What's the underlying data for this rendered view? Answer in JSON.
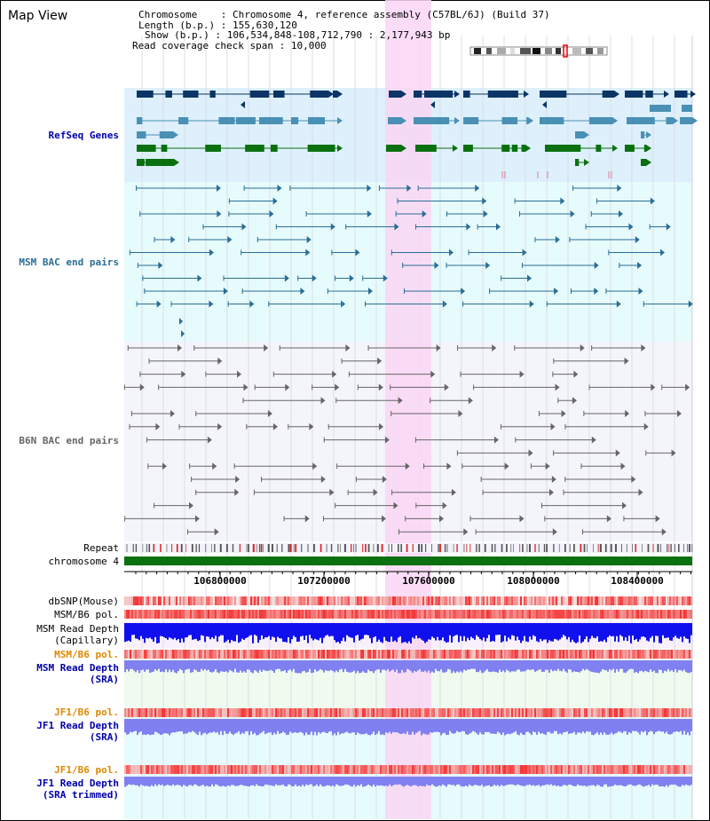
{
  "view": {
    "title": "Map View"
  },
  "info": {
    "chromosome_key": "Chromosome",
    "chromosome_value": "Chromosome 4, reference assembly (C57BL/6J) (Build 37)",
    "length_key": "Length (b.p.)",
    "length_value": "155,630,120",
    "show_key": "Show (b.p.)",
    "show_value": "106,534,848-108,712,790 : 2,177,943 bp",
    "coverage_key": "Read coverage check span",
    "coverage_value": "10,000"
  },
  "tracks": {
    "refseq": "RefSeq Genes",
    "msm_bac": "MSM BAC end pairs",
    "b6n_bac": "B6N BAC end pairs",
    "repeat": "Repeat",
    "chromosome": "chromosome 4",
    "dbsnp": "dbSNP(Mouse)",
    "msm_b6_pol": "MSM/B6 pol.",
    "msm_depth_cap_1": "MSM Read Depth",
    "msm_depth_cap_2": "(Capillary)",
    "msm_b6_pol_2": "MSM/B6 pol.",
    "msm_depth_sra_1": "MSM Read Depth",
    "msm_depth_sra_2": "(SRA)",
    "jf1_b6_pol": "JF1/B6 pol.",
    "jf1_depth_sra_1": "JF1 Read Depth",
    "jf1_depth_sra_2": "(SRA)",
    "jf1_b6_pol_2": "JF1/B6 pol.",
    "jf1_depth_trim_1": "JF1 Read Depth",
    "jf1_depth_trim_2": "(SRA trimmed)"
  },
  "axis": {
    "ticks": [
      "106800000",
      "107200000",
      "107600000",
      "108000000",
      "108400000"
    ]
  },
  "colors": {
    "refseq_bg": "#ddf0fb",
    "msm_bg": "#e6fbfb",
    "b6n_bg": "#f4f4fb",
    "highlight": "#f9d6f4",
    "refseq_dark": "#0b3566",
    "refseq_mid": "#4a90b4",
    "refseq_green": "#0a7010",
    "msm_bac": "#2a6e96",
    "b6n_bac": "#666666",
    "chromosome": "#0a7010",
    "label_blue": "#0000aa",
    "label_orange": "#e08800",
    "depth_blue": "#1010ee",
    "depth_lavender": "#8080f0"
  }
}
